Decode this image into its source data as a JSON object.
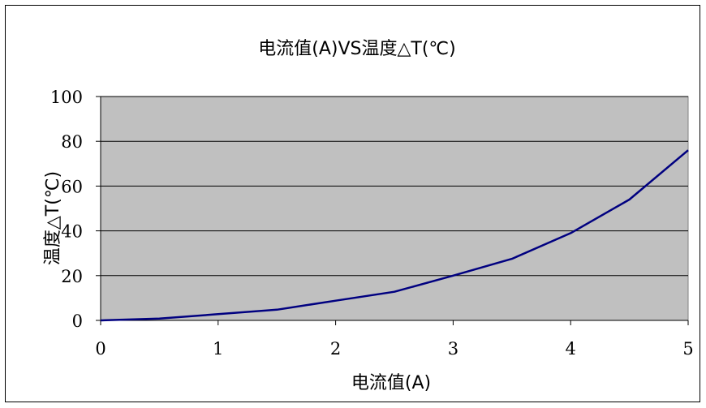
{
  "chart_data": {
    "type": "line",
    "title": "电流值(A)VS温度△T(℃)",
    "xlabel": "电流值(A)",
    "ylabel": "温度△T(℃)",
    "xlim": [
      0,
      5
    ],
    "ylim": [
      0,
      100
    ],
    "x_ticks": [
      "0",
      "1",
      "2",
      "3",
      "4",
      "5"
    ],
    "y_ticks": [
      "0",
      "20",
      "40",
      "60",
      "80",
      "100"
    ],
    "grid": true,
    "legend": "none",
    "plot_background": "#c0c0c0",
    "line_color": "#000080",
    "series": [
      {
        "x": [
          0,
          0.5,
          1,
          1.5,
          2,
          2.5,
          3,
          3.5,
          4,
          4.5,
          5
        ],
        "values": [
          0,
          0.8,
          2.8,
          4.8,
          8.8,
          12.8,
          20,
          27.5,
          39,
          54,
          76
        ]
      }
    ]
  }
}
